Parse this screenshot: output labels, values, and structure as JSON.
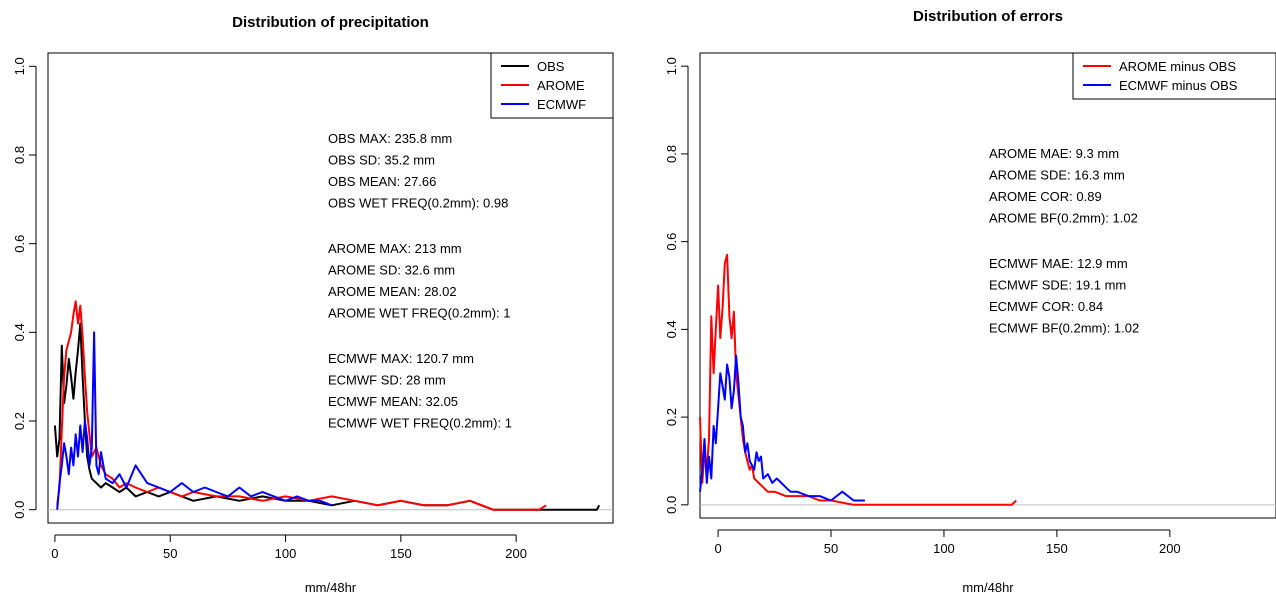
{
  "chart_data": [
    {
      "type": "line",
      "title": "Distribution of precipitation",
      "xlabel": "mm/48hr",
      "ylabel": "",
      "xlim": [
        -3,
        242
      ],
      "ylim": [
        -0.03,
        1.03
      ],
      "xticks": [
        0,
        50,
        100,
        150,
        200
      ],
      "yticks": [
        0.0,
        0.2,
        0.4,
        0.6,
        0.8,
        1.0
      ],
      "ytick_labels": [
        "0.0",
        "0.2",
        "0.4",
        "0.6",
        "0.8",
        "1.0"
      ],
      "reference_line_y": 0,
      "legend_position": "top-right",
      "series": [
        {
          "name": "OBS",
          "color": "#000000",
          "x": [
            0,
            1,
            2,
            3,
            4,
            5,
            6,
            7,
            8,
            9,
            10,
            11,
            12,
            13,
            14,
            15,
            16,
            18,
            20,
            22,
            25,
            28,
            31,
            35,
            40,
            45,
            50,
            55,
            60,
            70,
            80,
            90,
            100,
            110,
            120,
            130,
            140,
            150,
            160,
            170,
            180,
            185,
            190,
            200,
            210,
            220,
            230,
            233,
            235,
            236
          ],
          "values": [
            0.19,
            0.12,
            0.16,
            0.37,
            0.24,
            0.28,
            0.34,
            0.3,
            0.25,
            0.31,
            0.36,
            0.42,
            0.3,
            0.2,
            0.12,
            0.09,
            0.07,
            0.06,
            0.05,
            0.06,
            0.05,
            0.04,
            0.05,
            0.03,
            0.04,
            0.03,
            0.04,
            0.03,
            0.02,
            0.03,
            0.02,
            0.03,
            0.02,
            0.02,
            0.01,
            0.02,
            0.01,
            0.02,
            0.01,
            0.01,
            0.02,
            0.01,
            0.0,
            0.0,
            0.0,
            0.0,
            0.0,
            0.0,
            0.0,
            0.01
          ]
        },
        {
          "name": "AROME",
          "color": "#ff0000",
          "x": [
            1,
            2,
            3,
            4,
            5,
            6,
            7,
            8,
            9,
            10,
            11,
            12,
            13,
            14,
            16,
            18,
            20,
            22,
            25,
            28,
            31,
            35,
            40,
            45,
            50,
            55,
            60,
            70,
            80,
            90,
            100,
            110,
            120,
            130,
            140,
            150,
            160,
            170,
            180,
            190,
            200,
            210,
            213
          ],
          "values": [
            0.01,
            0.05,
            0.18,
            0.3,
            0.36,
            0.38,
            0.4,
            0.44,
            0.47,
            0.42,
            0.46,
            0.39,
            0.3,
            0.22,
            0.12,
            0.14,
            0.1,
            0.08,
            0.07,
            0.05,
            0.06,
            0.05,
            0.04,
            0.05,
            0.04,
            0.03,
            0.04,
            0.03,
            0.03,
            0.02,
            0.03,
            0.02,
            0.03,
            0.02,
            0.01,
            0.02,
            0.01,
            0.01,
            0.02,
            0.0,
            0.0,
            0.0,
            0.01
          ]
        },
        {
          "name": "ECMWF",
          "color": "#0000ff",
          "x": [
            1,
            2,
            3,
            4,
            5,
            6,
            7,
            8,
            9,
            10,
            11,
            12,
            13,
            14,
            15,
            16,
            17,
            18,
            19,
            20,
            22,
            25,
            28,
            31,
            35,
            40,
            45,
            50,
            55,
            60,
            65,
            70,
            75,
            80,
            85,
            90,
            95,
            100,
            105,
            110,
            115,
            120
          ],
          "values": [
            0.0,
            0.06,
            0.1,
            0.15,
            0.12,
            0.08,
            0.14,
            0.1,
            0.17,
            0.12,
            0.19,
            0.13,
            0.2,
            0.16,
            0.1,
            0.14,
            0.4,
            0.1,
            0.08,
            0.13,
            0.07,
            0.06,
            0.08,
            0.05,
            0.1,
            0.06,
            0.05,
            0.04,
            0.06,
            0.04,
            0.05,
            0.04,
            0.03,
            0.05,
            0.03,
            0.04,
            0.03,
            0.02,
            0.03,
            0.02,
            0.02,
            0.01
          ]
        }
      ],
      "annotations": [
        [
          "OBS MAX: 235.8 mm",
          "OBS SD: 35.2 mm",
          "OBS MEAN: 27.66",
          "OBS WET FREQ(0.2mm): 0.98"
        ],
        [
          "AROME MAX: 213 mm",
          "AROME SD: 32.6 mm",
          "AROME MEAN: 28.02",
          "AROME WET FREQ(0.2mm): 1"
        ],
        [
          "ECMWF MAX: 120.7 mm",
          "ECMWF SD: 28 mm",
          "ECMWF MEAN: 32.05",
          "ECMWF WET FREQ(0.2mm): 1"
        ]
      ]
    },
    {
      "type": "line",
      "title": "Distribution of errors",
      "xlabel": "mm/48hr",
      "ylabel": "",
      "xlim": [
        -8,
        247
      ],
      "ylim": [
        -0.03,
        1.03
      ],
      "xticks": [
        0,
        50,
        100,
        150,
        200
      ],
      "yticks": [
        0.0,
        0.2,
        0.4,
        0.6,
        0.8,
        1.0
      ],
      "ytick_labels": [
        "0.0",
        "0.2",
        "0.4",
        "0.6",
        "0.8",
        "1.0"
      ],
      "reference_line_y": 0,
      "legend_position": "top-right",
      "series": [
        {
          "name": "AROME minus OBS",
          "color": "#ff0000",
          "x": [
            -8,
            -7,
            -6,
            -5,
            -4,
            -3,
            -2,
            -1,
            0,
            1,
            2,
            3,
            4,
            5,
            6,
            7,
            8,
            9,
            10,
            11,
            12,
            13,
            14,
            15,
            16,
            18,
            20,
            22,
            25,
            30,
            35,
            40,
            45,
            50,
            60,
            65,
            70,
            80,
            90,
            100,
            110,
            120,
            130,
            132
          ],
          "values": [
            0.2,
            0.05,
            0.12,
            0.08,
            0.15,
            0.43,
            0.3,
            0.4,
            0.5,
            0.38,
            0.45,
            0.55,
            0.57,
            0.43,
            0.38,
            0.44,
            0.3,
            0.25,
            0.2,
            0.15,
            0.12,
            0.1,
            0.08,
            0.09,
            0.06,
            0.05,
            0.04,
            0.03,
            0.03,
            0.02,
            0.02,
            0.02,
            0.01,
            0.01,
            0.0,
            0.0,
            0.0,
            0.0,
            0.0,
            0.0,
            0.0,
            0.0,
            0.0,
            0.01
          ]
        },
        {
          "name": "ECMWF minus OBS",
          "color": "#0000ff",
          "x": [
            -8,
            -7,
            -6,
            -5,
            -4,
            -3,
            -2,
            -1,
            0,
            1,
            2,
            3,
            4,
            5,
            6,
            7,
            8,
            9,
            10,
            11,
            12,
            13,
            14,
            15,
            16,
            17,
            18,
            19,
            20,
            22,
            24,
            26,
            28,
            30,
            32,
            35,
            40,
            45,
            50,
            55,
            60,
            65
          ],
          "values": [
            0.03,
            0.08,
            0.15,
            0.05,
            0.11,
            0.06,
            0.18,
            0.14,
            0.22,
            0.3,
            0.27,
            0.24,
            0.32,
            0.29,
            0.22,
            0.26,
            0.34,
            0.28,
            0.2,
            0.18,
            0.12,
            0.14,
            0.1,
            0.09,
            0.08,
            0.12,
            0.1,
            0.11,
            0.06,
            0.07,
            0.05,
            0.06,
            0.05,
            0.04,
            0.03,
            0.03,
            0.02,
            0.02,
            0.01,
            0.03,
            0.01,
            0.01
          ]
        }
      ],
      "annotations": [
        [
          "AROME MAE: 9.3 mm",
          "AROME SDE: 16.3 mm",
          "AROME COR: 0.89",
          "AROME BF(0.2mm): 1.02"
        ],
        [
          "ECMWF MAE: 12.9 mm",
          "ECMWF SDE: 19.1 mm",
          "ECMWF COR: 0.84",
          "ECMWF BF(0.2mm): 1.02"
        ]
      ]
    }
  ]
}
